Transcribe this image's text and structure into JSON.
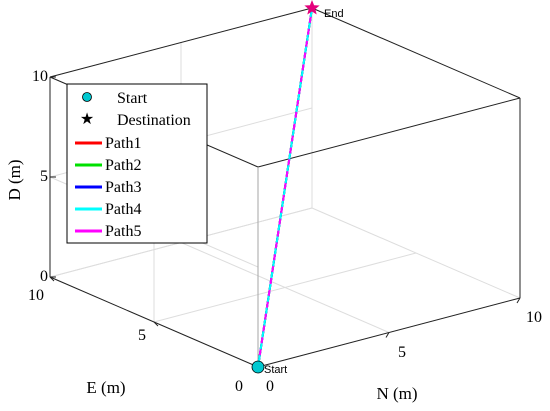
{
  "chart_data": {
    "type": "line3d",
    "axes": {
      "x": {
        "label": "N (m)",
        "range": [
          0,
          10
        ],
        "ticks": [
          "0",
          "5",
          "10"
        ]
      },
      "y": {
        "label": "E (m)",
        "range": [
          0,
          10
        ],
        "ticks": [
          "0",
          "5",
          "10"
        ]
      },
      "z": {
        "label": "D (m)",
        "range": [
          0,
          10
        ],
        "ticks": [
          "0",
          "5",
          "10"
        ]
      }
    },
    "grid": true,
    "legend_position": "top-left",
    "markers": [
      {
        "name": "Start",
        "symbol": "circle",
        "color": "#00c8d0",
        "point": [
          0,
          0,
          0
        ],
        "annotation": "Start"
      },
      {
        "name": "Destination",
        "symbol": "star",
        "color": "#e4007c",
        "point": [
          10,
          10,
          10
        ],
        "annotation": "End"
      }
    ],
    "series": [
      {
        "name": "Path1",
        "color": "#ff0000",
        "points": [
          [
            0,
            0,
            0
          ],
          [
            3,
            3,
            3
          ],
          [
            6,
            6,
            6
          ],
          [
            8,
            8,
            8
          ],
          [
            10,
            10,
            10
          ]
        ]
      },
      {
        "name": "Path2",
        "color": "#00e000",
        "points": [
          [
            0,
            0,
            0
          ],
          [
            3,
            3,
            3
          ],
          [
            6,
            6,
            6
          ],
          [
            8,
            8,
            8
          ],
          [
            10,
            10,
            10
          ]
        ]
      },
      {
        "name": "Path3",
        "color": "#0000ff",
        "points": [
          [
            0,
            0,
            0
          ],
          [
            3,
            3,
            3
          ],
          [
            6,
            6,
            6
          ],
          [
            8,
            8,
            8
          ],
          [
            10,
            10,
            10
          ]
        ]
      },
      {
        "name": "Path4",
        "color": "#00ffff",
        "points": [
          [
            0,
            0,
            0
          ],
          [
            3,
            3,
            3
          ],
          [
            6,
            6,
            6
          ],
          [
            8,
            8,
            8
          ],
          [
            10,
            10,
            10
          ]
        ]
      },
      {
        "name": "Path5",
        "color": "#ff00ff",
        "points": [
          [
            0,
            0,
            0
          ],
          [
            3,
            3,
            3
          ],
          [
            6,
            6,
            6
          ],
          [
            8,
            8,
            8
          ],
          [
            10,
            10,
            10
          ]
        ]
      }
    ]
  }
}
